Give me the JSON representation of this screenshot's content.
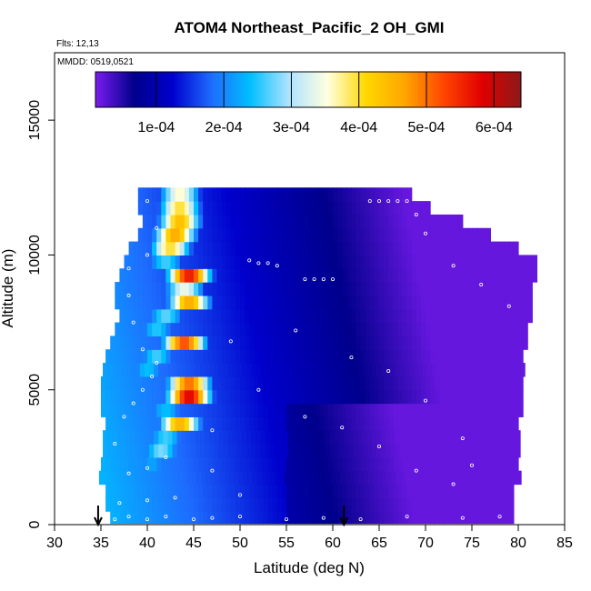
{
  "title": "ATOM4 Northeast_Pacific_2 OH_GMI",
  "flights_label": "Flts: 12,13",
  "date_label": "MMDD: 0519,0521",
  "chart_data": {
    "type": "heatmap",
    "title": "ATOM4 Northeast_Pacific_2 OH_GMI",
    "xlabel": "Latitude (deg N)",
    "ylabel": "Altitude (m)",
    "xlim": [
      30,
      85
    ],
    "ylim": [
      0,
      17500
    ],
    "xticks": [
      "30",
      "35",
      "40",
      "45",
      "50",
      "55",
      "60",
      "65",
      "70",
      "75",
      "80",
      "85"
    ],
    "yticks": [
      "0",
      "5000",
      "10000",
      "15000"
    ],
    "colorbar": {
      "min": 1e-05,
      "max": 0.00064,
      "tick_values": [
        0.0001,
        0.0002,
        0.0003,
        0.0004,
        0.0005,
        0.0006
      ],
      "tick_labels": [
        "1e-04",
        "2e-04",
        "3e-04",
        "4e-04",
        "5e-04",
        "6e-04"
      ],
      "colors": [
        "#7a1cf0",
        "#00008b",
        "#0000cd",
        "#1e6cff",
        "#00bfff",
        "#aee3ff",
        "#ffffe0",
        "#ffd700",
        "#ffa500",
        "#ff4500",
        "#e00000",
        "#8b1a1a"
      ]
    },
    "layers": [
      {
        "alt": 300,
        "lat_start": 36.0,
        "lat_end": 79.5,
        "peaks": []
      },
      {
        "alt": 750,
        "lat_start": 35.5,
        "lat_end": 79.5,
        "peaks": []
      },
      {
        "alt": 1250,
        "lat_start": 35.5,
        "lat_end": 79.5,
        "peaks": []
      },
      {
        "alt": 1750,
        "lat_start": 34.8,
        "lat_end": 80.0,
        "peaks": []
      },
      {
        "alt": 2250,
        "lat_start": 35.0,
        "lat_end": 80.0,
        "peaks": [
          {
            "lat": 40.5,
            "value": 0.00022
          }
        ]
      },
      {
        "alt": 2750,
        "lat_start": 35.2,
        "lat_end": 80.0,
        "peaks": [
          {
            "lat": 41.5,
            "value": 0.00028
          }
        ]
      },
      {
        "alt": 3250,
        "lat_start": 35.2,
        "lat_end": 80.0,
        "peaks": [
          {
            "lat": 42.0,
            "value": 0.00026
          }
        ]
      },
      {
        "alt": 3750,
        "lat_start": 35.5,
        "lat_end": 80.0,
        "peaks": [
          {
            "lat": 43.5,
            "value": 0.00045
          }
        ]
      },
      {
        "alt": 4250,
        "lat_start": 35.0,
        "lat_end": 80.5,
        "peaks": [
          {
            "lat": 42.0,
            "value": 0.00024
          }
        ]
      },
      {
        "alt": 4750,
        "lat_start": 35.0,
        "lat_end": 80.5,
        "peaks": [
          {
            "lat": 44.5,
            "value": 0.00058
          }
        ]
      },
      {
        "alt": 5250,
        "lat_start": 35.0,
        "lat_end": 80.5,
        "peaks": [
          {
            "lat": 44.5,
            "value": 0.0005
          }
        ]
      },
      {
        "alt": 5750,
        "lat_start": 35.2,
        "lat_end": 80.5,
        "peaks": [
          {
            "lat": 40.0,
            "value": 0.00024
          }
        ]
      },
      {
        "alt": 6250,
        "lat_start": 35.5,
        "lat_end": 80.5,
        "peaks": [
          {
            "lat": 41.0,
            "value": 0.00026
          }
        ]
      },
      {
        "alt": 6750,
        "lat_start": 36.0,
        "lat_end": 81.0,
        "peaks": [
          {
            "lat": 44.0,
            "value": 0.00052
          }
        ]
      },
      {
        "alt": 7250,
        "lat_start": 36.5,
        "lat_end": 81.0,
        "peaks": [
          {
            "lat": 41.0,
            "value": 0.00025
          }
        ]
      },
      {
        "alt": 7750,
        "lat_start": 37.0,
        "lat_end": 81.5,
        "peaks": [
          {
            "lat": 42.0,
            "value": 0.00027
          }
        ]
      },
      {
        "alt": 8250,
        "lat_start": 36.5,
        "lat_end": 81.5,
        "peaks": [
          {
            "lat": 44.5,
            "value": 0.00046
          }
        ]
      },
      {
        "alt": 8750,
        "lat_start": 36.5,
        "lat_end": 81.5,
        "peaks": [
          {
            "lat": 44.0,
            "value": 0.00034
          }
        ]
      },
      {
        "alt": 9250,
        "lat_start": 37.0,
        "lat_end": 82.0,
        "peaks": [
          {
            "lat": 44.5,
            "value": 0.00056
          }
        ]
      },
      {
        "alt": 9750,
        "lat_start": 37.5,
        "lat_end": 82.0,
        "peaks": [
          {
            "lat": 42.0,
            "value": 0.00026
          }
        ]
      },
      {
        "alt": 10250,
        "lat_start": 38.0,
        "lat_end": 80.0,
        "peaks": [
          {
            "lat": 42.5,
            "value": 0.0004
          }
        ]
      },
      {
        "alt": 10750,
        "lat_start": 39.0,
        "lat_end": 77.0,
        "peaks": [
          {
            "lat": 43.0,
            "value": 0.00046
          }
        ]
      },
      {
        "alt": 11250,
        "lat_start": 39.5,
        "lat_end": 74.0,
        "peaks": [
          {
            "lat": 43.5,
            "value": 0.00044
          }
        ]
      },
      {
        "alt": 11750,
        "lat_start": 39.0,
        "lat_end": 70.5,
        "peaks": [
          {
            "lat": 43.5,
            "value": 0.0004
          }
        ]
      },
      {
        "alt": 12250,
        "lat_start": 39.0,
        "lat_end": 68.5,
        "peaks": [
          {
            "lat": 43.5,
            "value": 0.00036
          }
        ]
      }
    ],
    "flight_points": [
      {
        "lat": 36.5,
        "alt": 200
      },
      {
        "lat": 38.0,
        "alt": 300
      },
      {
        "lat": 40.0,
        "alt": 200
      },
      {
        "lat": 42.0,
        "alt": 300
      },
      {
        "lat": 45.0,
        "alt": 200
      },
      {
        "lat": 47.0,
        "alt": 250
      },
      {
        "lat": 50.0,
        "alt": 300
      },
      {
        "lat": 55.0,
        "alt": 200
      },
      {
        "lat": 59.0,
        "alt": 250
      },
      {
        "lat": 63.0,
        "alt": 200
      },
      {
        "lat": 68.0,
        "alt": 300
      },
      {
        "lat": 74.0,
        "alt": 250
      },
      {
        "lat": 78.0,
        "alt": 300
      },
      {
        "lat": 37.0,
        "alt": 800
      },
      {
        "lat": 40.0,
        "alt": 900
      },
      {
        "lat": 43.0,
        "alt": 1000
      },
      {
        "lat": 38.0,
        "alt": 1900
      },
      {
        "lat": 40.0,
        "alt": 2100
      },
      {
        "lat": 42.0,
        "alt": 2500
      },
      {
        "lat": 36.5,
        "alt": 3000
      },
      {
        "lat": 37.5,
        "alt": 4000
      },
      {
        "lat": 38.5,
        "alt": 4500
      },
      {
        "lat": 39.5,
        "alt": 5000
      },
      {
        "lat": 40.5,
        "alt": 5500
      },
      {
        "lat": 41.0,
        "alt": 6000
      },
      {
        "lat": 39.5,
        "alt": 6500
      },
      {
        "lat": 38.5,
        "alt": 7500
      },
      {
        "lat": 38.0,
        "alt": 8500
      },
      {
        "lat": 38.0,
        "alt": 9500
      },
      {
        "lat": 40.0,
        "alt": 10000
      },
      {
        "lat": 41.0,
        "alt": 11000
      },
      {
        "lat": 40.0,
        "alt": 12000
      },
      {
        "lat": 51.0,
        "alt": 9800
      },
      {
        "lat": 52.0,
        "alt": 9700
      },
      {
        "lat": 53.0,
        "alt": 9700
      },
      {
        "lat": 54.0,
        "alt": 9600
      },
      {
        "lat": 57.0,
        "alt": 9100
      },
      {
        "lat": 58.0,
        "alt": 9100
      },
      {
        "lat": 59.0,
        "alt": 9100
      },
      {
        "lat": 60.0,
        "alt": 9100
      },
      {
        "lat": 64.0,
        "alt": 12000
      },
      {
        "lat": 65.0,
        "alt": 12000
      },
      {
        "lat": 66.0,
        "alt": 12000
      },
      {
        "lat": 67.0,
        "alt": 12000
      },
      {
        "lat": 68.0,
        "alt": 12000
      },
      {
        "lat": 69.0,
        "alt": 11500
      },
      {
        "lat": 70.0,
        "alt": 10800
      },
      {
        "lat": 73.0,
        "alt": 9600
      },
      {
        "lat": 76.0,
        "alt": 8900
      },
      {
        "lat": 79.0,
        "alt": 8100
      },
      {
        "lat": 56.0,
        "alt": 7200
      },
      {
        "lat": 62.0,
        "alt": 6200
      },
      {
        "lat": 66.0,
        "alt": 5700
      },
      {
        "lat": 70.0,
        "alt": 4600
      },
      {
        "lat": 74.0,
        "alt": 3200
      },
      {
        "lat": 75.0,
        "alt": 2200
      },
      {
        "lat": 57.0,
        "alt": 4000
      },
      {
        "lat": 61.0,
        "alt": 3600
      },
      {
        "lat": 65.0,
        "alt": 2900
      },
      {
        "lat": 69.0,
        "alt": 2000
      },
      {
        "lat": 73.0,
        "alt": 1500
      },
      {
        "lat": 47.0,
        "alt": 2000
      },
      {
        "lat": 50.0,
        "alt": 1100
      },
      {
        "lat": 52.0,
        "alt": 5000
      },
      {
        "lat": 49.0,
        "alt": 6800
      },
      {
        "lat": 47.0,
        "alt": 3500
      }
    ],
    "arrows_lat": [
      34.7,
      61.2
    ]
  }
}
